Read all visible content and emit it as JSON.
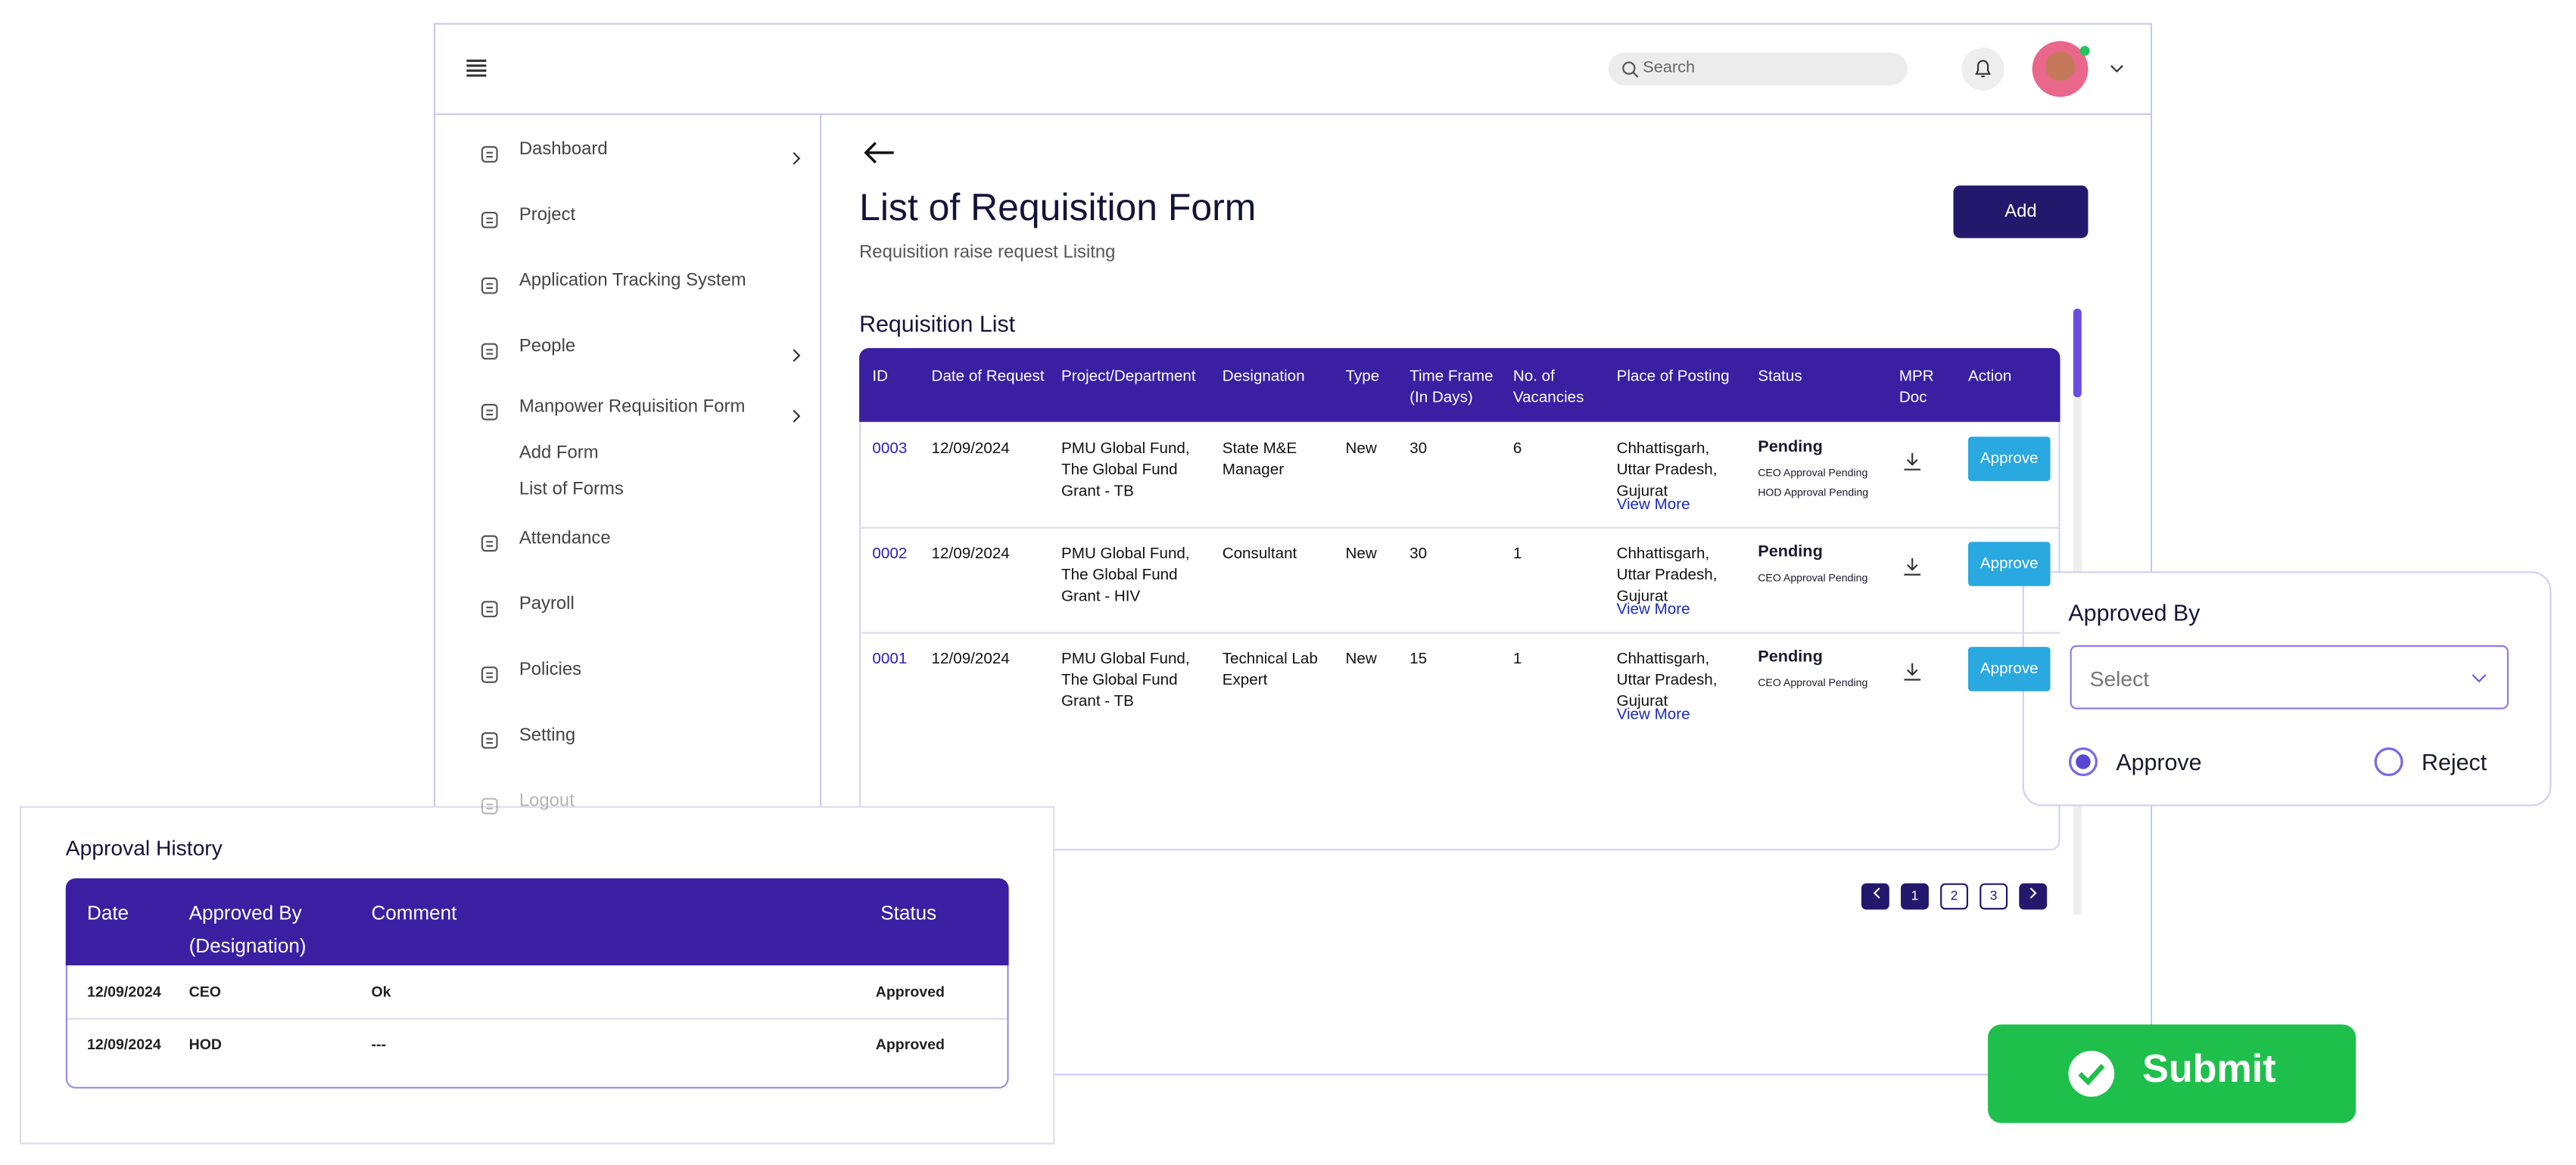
{
  "header": {
    "search_placeholder": "Search"
  },
  "sidebar": {
    "menu": [
      "Dashboard",
      "Project",
      "Application Tracking System",
      "People",
      "Manpower Requisition Form",
      "Attendance",
      "Payroll",
      "Policies",
      "Setting",
      "Logout"
    ],
    "submenu": [
      "Add Form",
      "List of Forms"
    ]
  },
  "page": {
    "title": "List of Requisition Form",
    "subtitle": "Requisition raise request Lisitng",
    "add_button": "Add",
    "section_title": "Requisition List"
  },
  "table": {
    "columns": [
      "ID",
      "Date of Request",
      "Project/Department",
      "Designation",
      "Type",
      "Time Frame (In Days)",
      "No. of Vacancies",
      "Place of Posting",
      "Status",
      "MPR Doc",
      "Action"
    ],
    "rows": [
      {
        "id": "0003",
        "date": "12/09/2024",
        "project": "PMU Global Fund, The Global Fund Grant - TB",
        "designation": "State M&E Manager",
        "type": "New",
        "time_frame": "30",
        "vacancies": "6",
        "place": "Chhattisgarh, Uttar Pradesh, Gujurat",
        "view_more": "View More",
        "status": "Pending",
        "approvals": [
          "CEO Approval Pending",
          "HOD Approval Pending"
        ],
        "action": "Approve"
      },
      {
        "id": "0002",
        "date": "12/09/2024",
        "project": "PMU Global Fund, The Global Fund Grant - HIV",
        "designation": "Consultant",
        "type": "New",
        "time_frame": "30",
        "vacancies": "1",
        "place": "Chhattisgarh, Uttar Pradesh, Gujurat",
        "view_more": "View More",
        "status": "Pending",
        "approvals": [
          "CEO Approval Pending"
        ],
        "action": "Approve"
      },
      {
        "id": "0001",
        "date": "12/09/2024",
        "project": "PMU Global Fund, The Global Fund Grant - TB",
        "designation": "Technical Lab Expert",
        "type": "New",
        "time_frame": "15",
        "vacancies": "1",
        "place": "Chhattisgarh, Uttar Pradesh, Gujurat",
        "view_more": "View More",
        "status": "Pending",
        "approvals": [
          "CEO Approval Pending"
        ],
        "action": "Approve"
      }
    ]
  },
  "pagination": [
    "1",
    "2",
    "3"
  ],
  "approval_history": {
    "title": "Approval History",
    "columns": [
      "Date",
      "Approved By (Designation)",
      "Comment",
      "Status"
    ],
    "rows": [
      [
        "12/09/2024",
        "CEO",
        "Ok",
        "Approved"
      ],
      [
        "12/09/2024",
        "HOD",
        "---",
        "Approved"
      ]
    ]
  },
  "approved_by": {
    "title": "Approved By",
    "select_placeholder": "Select",
    "options": [
      "Approve",
      "Reject"
    ]
  },
  "submit": "Submit"
}
